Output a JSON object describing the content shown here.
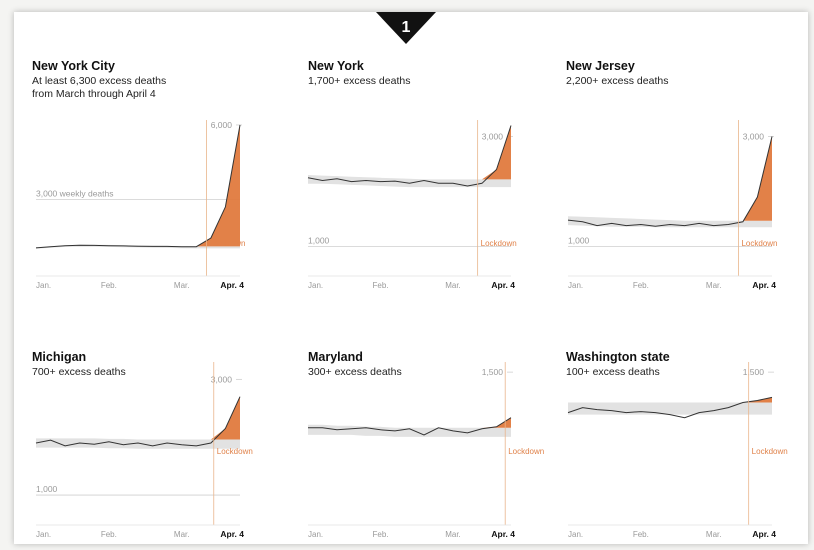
{
  "badge": {
    "number": "1"
  },
  "colors": {
    "excess": "#e07a3e",
    "baseline_band": "#e2e2e2",
    "line": "#333333",
    "lockdown": "#e9b58c",
    "gridline": "#cfcfcf"
  },
  "chart_data": [
    {
      "type": "area",
      "title": "New York City",
      "subtitle": [
        "At least 6,300 excess deaths",
        "from March through April 4"
      ],
      "reference_label": "3,000 weekly deaths",
      "ref_lines": [
        {
          "value": 3000,
          "label": "3,000 weekly deaths"
        },
        {
          "value": 6000,
          "label": "6,000"
        }
      ],
      "ylim": [
        0,
        6200
      ],
      "x_ticks": [
        {
          "x": 0,
          "label": "Jan."
        },
        {
          "x": 5,
          "label": "Feb."
        },
        {
          "x": 10,
          "label": "Mar."
        },
        {
          "x": 14,
          "label": "Apr. 4",
          "bold": true
        }
      ],
      "x_range": [
        0,
        14
      ],
      "observed": [
        1050,
        1100,
        1140,
        1160,
        1150,
        1140,
        1130,
        1120,
        1110,
        1110,
        1100,
        1100,
        1450,
        2700,
        6000
      ],
      "baseline_low": [
        1020,
        1060,
        1090,
        1100,
        1100,
        1090,
        1080,
        1070,
        1060,
        1050,
        1040,
        1030,
        1030,
        1030,
        1030
      ],
      "baseline_high": [
        1080,
        1120,
        1160,
        1180,
        1180,
        1170,
        1160,
        1150,
        1140,
        1130,
        1120,
        1110,
        1110,
        1110,
        1110
      ],
      "lockdown_x": 11.7,
      "lockdown_label": "Lockdown"
    },
    {
      "type": "area",
      "title": "New York",
      "subtitle": [
        "1,700+ excess deaths"
      ],
      "ref_lines": [
        {
          "value": 3000,
          "label": "3,000"
        },
        {
          "value": 1000,
          "label": "1,000"
        }
      ],
      "ylim": [
        500,
        3300
      ],
      "x_ticks": [
        {
          "x": 0,
          "label": "Jan."
        },
        {
          "x": 5,
          "label": "Feb."
        },
        {
          "x": 10,
          "label": "Mar."
        },
        {
          "x": 14,
          "label": "Apr. 4",
          "bold": true
        }
      ],
      "x_range": [
        0,
        14
      ],
      "observed": [
        2250,
        2200,
        2230,
        2180,
        2200,
        2180,
        2190,
        2150,
        2200,
        2150,
        2150,
        2100,
        2150,
        2400,
        3200
      ],
      "baseline_low": [
        2140,
        2140,
        2130,
        2120,
        2110,
        2100,
        2090,
        2080,
        2080,
        2080,
        2080,
        2080,
        2080,
        2080,
        2080
      ],
      "baseline_high": [
        2300,
        2290,
        2280,
        2270,
        2260,
        2250,
        2240,
        2230,
        2220,
        2220,
        2220,
        2220,
        2220,
        2220,
        2220
      ],
      "lockdown_x": 11.7,
      "lockdown_label": "Lockdown"
    },
    {
      "type": "area",
      "title": "New Jersey",
      "subtitle": [
        "2,200+ excess deaths"
      ],
      "ref_lines": [
        {
          "value": 3000,
          "label": "3,000"
        },
        {
          "value": 1000,
          "label": "1,000"
        }
      ],
      "ylim": [
        500,
        3300
      ],
      "x_ticks": [
        {
          "x": 0,
          "label": "Jan."
        },
        {
          "x": 5,
          "label": "Feb."
        },
        {
          "x": 10,
          "label": "Mar."
        },
        {
          "x": 14,
          "label": "Apr. 4",
          "bold": true
        }
      ],
      "x_range": [
        0,
        14
      ],
      "observed": [
        1480,
        1450,
        1380,
        1420,
        1380,
        1400,
        1370,
        1400,
        1380,
        1420,
        1380,
        1400,
        1450,
        1900,
        3000
      ],
      "baseline_low": [
        1390,
        1380,
        1370,
        1360,
        1360,
        1360,
        1350,
        1350,
        1350,
        1350,
        1350,
        1350,
        1350,
        1350,
        1350
      ],
      "baseline_high": [
        1550,
        1540,
        1530,
        1520,
        1510,
        1500,
        1490,
        1480,
        1470,
        1470,
        1470,
        1470,
        1470,
        1470,
        1470
      ],
      "lockdown_x": 11.7,
      "lockdown_label": "Lockdown"
    },
    {
      "type": "area",
      "title": "Michigan",
      "subtitle": [
        "700+ excess deaths"
      ],
      "ref_lines": [
        {
          "value": 3000,
          "label": "3,000"
        },
        {
          "value": 1000,
          "label": "1,000"
        }
      ],
      "ylim": [
        500,
        3300
      ],
      "x_ticks": [
        {
          "x": 0,
          "label": "Jan."
        },
        {
          "x": 5,
          "label": "Feb."
        },
        {
          "x": 10,
          "label": "Mar."
        },
        {
          "x": 14,
          "label": "Apr. 4",
          "bold": true
        }
      ],
      "x_range": [
        0,
        14
      ],
      "observed": [
        1900,
        1950,
        1850,
        1900,
        1880,
        1920,
        1870,
        1900,
        1850,
        1900,
        1870,
        1850,
        1900,
        2150,
        2700
      ],
      "baseline_low": [
        1820,
        1820,
        1820,
        1820,
        1820,
        1810,
        1810,
        1800,
        1800,
        1800,
        1800,
        1800,
        1800,
        1800,
        1800
      ],
      "baseline_high": [
        1980,
        1980,
        1980,
        1980,
        1980,
        1970,
        1970,
        1960,
        1960,
        1960,
        1960,
        1960,
        1960,
        1960,
        1960
      ],
      "lockdown_x": 12.2,
      "lockdown_label": "Lockdown"
    },
    {
      "type": "area",
      "title": "Maryland",
      "subtitle": [
        "300+ excess deaths"
      ],
      "ref_lines": [
        {
          "value": 1500,
          "label": "1,500"
        }
      ],
      "ylim": [
        0,
        1600
      ],
      "x_ticks": [
        {
          "x": 0,
          "label": "Jan."
        },
        {
          "x": 5,
          "label": "Feb."
        },
        {
          "x": 10,
          "label": "Mar."
        },
        {
          "x": 14,
          "label": "Apr. 4",
          "bold": true
        }
      ],
      "x_range": [
        0,
        14
      ],
      "observed": [
        950,
        950,
        930,
        940,
        950,
        930,
        920,
        940,
        880,
        950,
        920,
        900,
        940,
        960,
        1050
      ],
      "baseline_low": [
        880,
        880,
        880,
        880,
        870,
        870,
        860,
        860,
        860,
        860,
        860,
        860,
        860,
        860,
        860
      ],
      "baseline_high": [
        980,
        980,
        970,
        970,
        960,
        960,
        950,
        950,
        950,
        950,
        950,
        950,
        950,
        950,
        950
      ],
      "lockdown_x": 13.6,
      "lockdown_label": "Lockdown"
    },
    {
      "type": "area",
      "title": "Washington state",
      "subtitle": [
        "100+ excess deaths"
      ],
      "ref_lines": [
        {
          "value": 1500,
          "label": "1,500"
        }
      ],
      "ylim": [
        0,
        1600
      ],
      "x_ticks": [
        {
          "x": 0,
          "label": "Jan."
        },
        {
          "x": 5,
          "label": "Feb."
        },
        {
          "x": 10,
          "label": "Mar."
        },
        {
          "x": 14,
          "label": "Apr. 4",
          "bold": true
        }
      ],
      "x_range": [
        0,
        14
      ],
      "observed": [
        1100,
        1150,
        1130,
        1120,
        1100,
        1110,
        1100,
        1080,
        1050,
        1100,
        1120,
        1150,
        1200,
        1220,
        1250
      ],
      "baseline_low": [
        1080,
        1080,
        1080,
        1080,
        1080,
        1080,
        1080,
        1080,
        1080,
        1080,
        1080,
        1080,
        1080,
        1080,
        1080
      ],
      "baseline_high": [
        1200,
        1200,
        1200,
        1200,
        1200,
        1200,
        1200,
        1200,
        1200,
        1200,
        1200,
        1200,
        1200,
        1200,
        1200
      ],
      "lockdown_x": 12.4,
      "lockdown_label": "Lockdown"
    }
  ]
}
